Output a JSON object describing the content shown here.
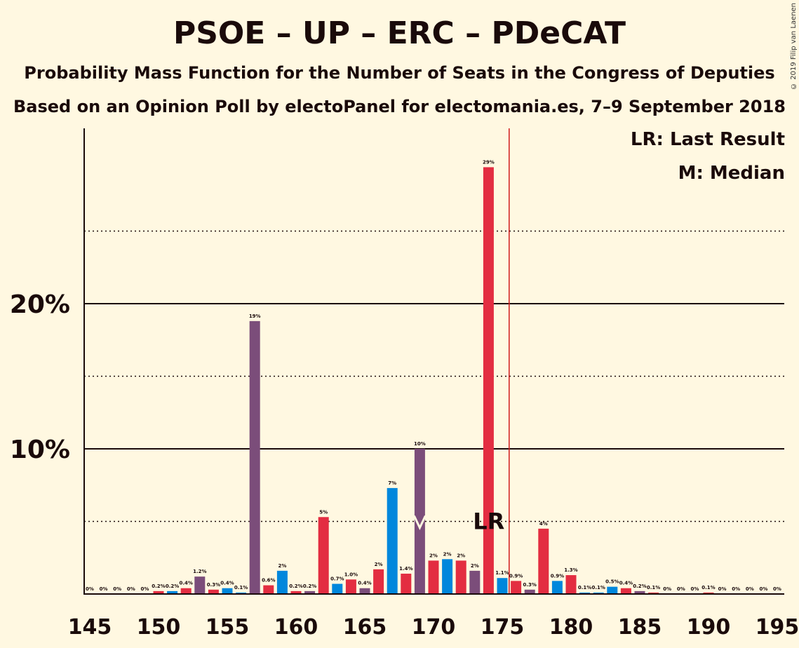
{
  "title": "PSOE – UP – ERC – PDeCAT",
  "subtitle1": "Probability Mass Function for the Number of Seats in the Congress of Deputies",
  "subtitle2": "Based on an Opinion Poll by electoPanel for electomania.es, 7–9 September 2018",
  "copyright": "© 2019 Filip van Laenen",
  "legend": {
    "last_result": "LR: Last Result",
    "median": "M: Median"
  },
  "colors": {
    "background": "#FFF8E1",
    "series": [
      "#E32D41",
      "#7B4D7A",
      "#0087DC"
    ],
    "last_result_line": "#D01A1A"
  },
  "chart_data": {
    "type": "bar",
    "x": [
      145,
      146,
      147,
      148,
      149,
      150,
      151,
      152,
      153,
      154,
      155,
      156,
      157,
      158,
      159,
      160,
      161,
      162,
      163,
      164,
      165,
      166,
      167,
      168,
      169,
      170,
      171,
      172,
      173,
      174,
      175,
      176,
      177,
      178,
      179,
      180,
      181,
      182,
      183,
      184,
      185,
      186,
      187,
      188,
      189,
      190,
      191,
      192,
      193,
      194,
      195
    ],
    "values": [
      0,
      0,
      0,
      0,
      0,
      0.2,
      0.2,
      0.4,
      1.2,
      0.3,
      0.4,
      0.1,
      18.8,
      0.6,
      1.6,
      0.2,
      0.2,
      5.3,
      0.7,
      1.0,
      0.4,
      1.7,
      7.3,
      1.4,
      10.0,
      2.3,
      2.4,
      2.3,
      1.6,
      29.4,
      1.1,
      0.9,
      0.3,
      4.5,
      0.9,
      1.3,
      0.1,
      0.1,
      0.5,
      0.4,
      0.2,
      0.1,
      0,
      0,
      0,
      0.1,
      0,
      0,
      0,
      0,
      0
    ],
    "labels": [
      "0%",
      "0%",
      "0%",
      "0%",
      "0%",
      "0.2%",
      "0.2%",
      "0.4%",
      "1.2%",
      "0.3%",
      "0.4%",
      "0.1%",
      "19%",
      "0.6%",
      "2%",
      "0.2%",
      "0.2%",
      "5%",
      "0.7%",
      "1.0%",
      "0.4%",
      "2%",
      "7%",
      "1.4%",
      "10%",
      "2%",
      "2%",
      "2%",
      "2%",
      "29%",
      "1.1%",
      "0.9%",
      "0.3%",
      "4%",
      "0.9%",
      "1.3%",
      "0.1%",
      "0.1%",
      "0.5%",
      "0.4%",
      "0.2%",
      "0.1%",
      "0%",
      "0%",
      "0%",
      "0.1%",
      "0%",
      "0%",
      "0%",
      "0%",
      "0%"
    ],
    "color_index": [
      0,
      0,
      0,
      0,
      0,
      0,
      2,
      0,
      1,
      0,
      2,
      2,
      1,
      0,
      2,
      0,
      1,
      0,
      2,
      0,
      1,
      0,
      2,
      0,
      1,
      0,
      2,
      0,
      1,
      0,
      2,
      0,
      1,
      0,
      2,
      0,
      2,
      2,
      2,
      0,
      1,
      0,
      0,
      0,
      0,
      0,
      0,
      0,
      0,
      0,
      0
    ],
    "x_ticks": [
      145,
      150,
      155,
      160,
      165,
      170,
      175,
      180,
      185,
      190,
      195
    ],
    "x_tick_labels": [
      "145",
      "150",
      "155",
      "160",
      "165",
      "170",
      "175",
      "180",
      "185",
      "190",
      "195"
    ],
    "y_ticks": [
      10,
      20
    ],
    "y_tick_labels": [
      "10%",
      "20%"
    ],
    "ylim": [
      0,
      32
    ],
    "dotted_gridlines": [
      5,
      15,
      25
    ],
    "solid_gridlines": [
      10,
      20
    ],
    "last_result": 176,
    "last_result_label": "LR",
    "median": 169
  }
}
